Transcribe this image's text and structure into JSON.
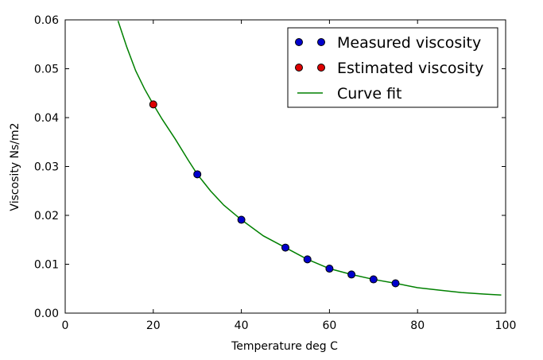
{
  "chart_data": {
    "type": "scatter",
    "title": "",
    "xlabel": "Temperature deg C",
    "ylabel": "Viscosity Ns/m2",
    "xlim": [
      0,
      100
    ],
    "ylim": [
      0.0,
      0.06
    ],
    "xticks": [
      0,
      20,
      40,
      60,
      80,
      100
    ],
    "xtick_labels": [
      "0",
      "20",
      "40",
      "60",
      "80",
      "100"
    ],
    "yticks": [
      0.0,
      0.01,
      0.02,
      0.03,
      0.04,
      0.05,
      0.06
    ],
    "ytick_labels": [
      "0.00",
      "0.01",
      "0.02",
      "0.03",
      "0.04",
      "0.05",
      "0.06"
    ],
    "grid": false,
    "legend_position": "top-right",
    "series": [
      {
        "name": "Measured viscosity",
        "kind": "scatter",
        "color": "#0000cc",
        "x": [
          30,
          40,
          50,
          55,
          60,
          65,
          70,
          75
        ],
        "y": [
          0.0284,
          0.0191,
          0.0134,
          0.011,
          0.0091,
          0.0079,
          0.0069,
          0.0061
        ]
      },
      {
        "name": "Estimated viscosity",
        "kind": "scatter",
        "color": "#dd0000",
        "x": [
          20
        ],
        "y": [
          0.0427
        ]
      },
      {
        "name": "Curve fit",
        "kind": "line",
        "color": "#008000",
        "x": [
          12,
          14,
          16,
          18,
          20,
          22,
          25,
          28,
          30,
          33,
          36,
          40,
          45,
          50,
          55,
          60,
          65,
          70,
          75,
          80,
          85,
          90,
          95,
          99
        ],
        "y": [
          0.0598,
          0.0544,
          0.0496,
          0.0459,
          0.0427,
          0.0397,
          0.0356,
          0.0312,
          0.0284,
          0.025,
          0.0221,
          0.0191,
          0.0158,
          0.0134,
          0.011,
          0.0091,
          0.0079,
          0.0069,
          0.0061,
          0.0052,
          0.0047,
          0.0042,
          0.0039,
          0.0037
        ]
      }
    ]
  }
}
